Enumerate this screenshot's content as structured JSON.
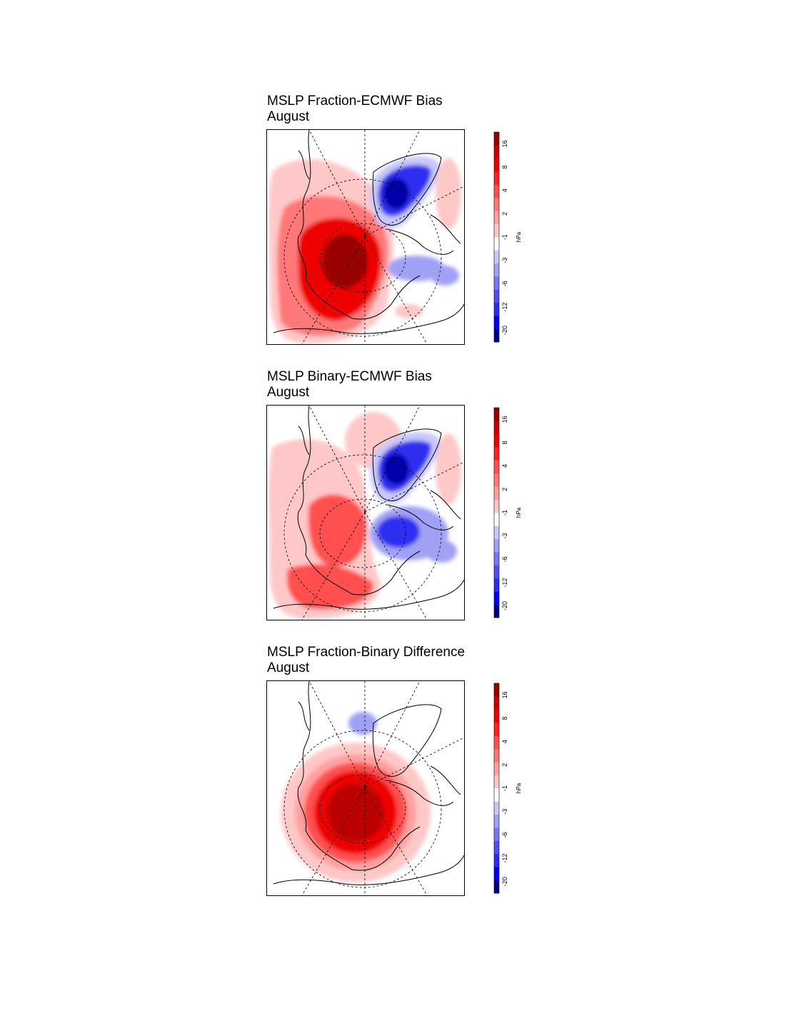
{
  "colorbar": {
    "unit": "hPa",
    "tick_labels": [
      "-20",
      "-12",
      "-6",
      "-3",
      "-1",
      "2",
      "4",
      "8",
      "16"
    ],
    "colors": [
      "#00008b",
      "#0000ff",
      "#2d2df0",
      "#5050ee",
      "#7878f0",
      "#a0a0f5",
      "#c8c8fa",
      "#ffffff",
      "#ffc8c8",
      "#ffa0a0",
      "#ff7878",
      "#ff5050",
      "#ff2020",
      "#ee0000",
      "#cc0000",
      "#990000"
    ]
  },
  "chart_data": [
    {
      "type": "heatmap",
      "title": "MSLP Fraction-ECMWF Bias",
      "subtitle": "August",
      "unit": "hPa",
      "anomalies": [
        {
          "region": "west-central",
          "sign": "positive",
          "peak_hPa": 16
        },
        {
          "region": "north-east (Greenland)",
          "sign": "negative",
          "peak_hPa": -20
        },
        {
          "region": "east-central",
          "sign": "negative",
          "peak_hPa": -3
        }
      ]
    },
    {
      "type": "heatmap",
      "title": "MSLP Binary-ECMWF Bias",
      "subtitle": "August",
      "unit": "hPa",
      "anomalies": [
        {
          "region": "west-central",
          "sign": "positive",
          "peak_hPa": 8
        },
        {
          "region": "north-east (Greenland)",
          "sign": "negative",
          "peak_hPa": -20
        },
        {
          "region": "east-central",
          "sign": "negative",
          "peak_hPa": -12
        }
      ]
    },
    {
      "type": "heatmap",
      "title": "MSLP Fraction-Binary Difference",
      "subtitle": "August",
      "unit": "hPa",
      "anomalies": [
        {
          "region": "central",
          "sign": "positive",
          "peak_hPa": 16
        },
        {
          "region": "north",
          "sign": "negative",
          "peak_hPa": -1
        }
      ]
    }
  ]
}
